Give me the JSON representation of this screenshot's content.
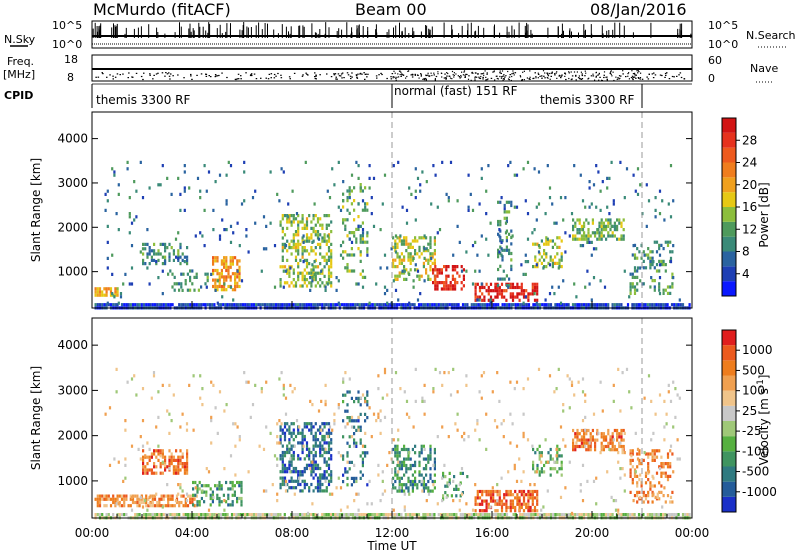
{
  "header": {
    "station": "McMurdo (fitACF)",
    "beam": "Beam 00",
    "date": "08/Jan/2016"
  },
  "top_strip": {
    "left_labels": [
      "N.Sky",
      "Freq.",
      "[MHz]",
      "CPID"
    ],
    "right_labels": [
      "N.Search",
      "Nave"
    ],
    "sky_ticks": [
      "10^5",
      "10^0"
    ],
    "search_ticks": [
      "10^5",
      "10^0"
    ],
    "freq_ticks": [
      "18",
      "8"
    ],
    "nave_ticks": [
      "60",
      "0"
    ],
    "cpid_segments": [
      {
        "label": "themis 3300 RF",
        "start_hr": 0,
        "end_hr": 12
      },
      {
        "label": "normal (fast) 151 RF",
        "start_hr": 12,
        "end_hr": 24
      },
      {
        "label": "themis 3300 RF",
        "start_hr": 18.5,
        "end_hr": 21.6
      }
    ]
  },
  "chart_data": [
    {
      "type": "heatmap",
      "name": "power",
      "ylabel": "Slant Range [km]",
      "xlabel": "Time UT",
      "xlim_hr": [
        0,
        24
      ],
      "ylim_km": [
        180,
        4600
      ],
      "yticks": [
        "1000",
        "2000",
        "3000",
        "4000"
      ],
      "colorbar": {
        "label": "Power [dB]",
        "ticks": [
          "4",
          "8",
          "12",
          "16",
          "20",
          "24",
          "28"
        ],
        "colors": [
          "#0a18ff",
          "#1e3fb4",
          "#2a63a0",
          "#3a8a78",
          "#4e9a5c",
          "#8cbe3c",
          "#e6c814",
          "#f0a01e",
          "#f07d1e",
          "#ee5a1e",
          "#e6321e",
          "#d21414"
        ]
      },
      "blobs": [
        {
          "t0": 0.1,
          "t1": 23.9,
          "r0": 190,
          "r1": 290,
          "v": 0.12,
          "d": 0.9
        },
        {
          "t0": 0.1,
          "t1": 1.0,
          "r0": 450,
          "r1": 650,
          "v": 0.6,
          "d": 0.8
        },
        {
          "t0": 2.0,
          "t1": 3.8,
          "r0": 1200,
          "r1": 1650,
          "v": 0.3,
          "d": 0.45
        },
        {
          "t0": 3.0,
          "t1": 4.6,
          "r0": 550,
          "r1": 1050,
          "v": 0.35,
          "d": 0.35
        },
        {
          "t0": 4.8,
          "t1": 5.9,
          "r0": 600,
          "r1": 1350,
          "v": 0.65,
          "d": 0.55
        },
        {
          "t0": 7.5,
          "t1": 9.6,
          "r0": 700,
          "r1": 2300,
          "v": 0.45,
          "d": 0.45
        },
        {
          "t0": 10.0,
          "t1": 11.0,
          "r0": 900,
          "r1": 3000,
          "v": 0.4,
          "d": 0.25
        },
        {
          "t0": 12.0,
          "t1": 13.7,
          "r0": 850,
          "r1": 1800,
          "v": 0.5,
          "d": 0.45
        },
        {
          "t0": 13.6,
          "t1": 14.9,
          "r0": 600,
          "r1": 1150,
          "v": 0.9,
          "d": 0.55
        },
        {
          "t0": 15.3,
          "t1": 17.8,
          "r0": 350,
          "r1": 750,
          "v": 0.95,
          "d": 0.6
        },
        {
          "t0": 16.2,
          "t1": 16.8,
          "r0": 700,
          "r1": 2600,
          "v": 0.3,
          "d": 0.3
        },
        {
          "t0": 17.6,
          "t1": 18.8,
          "r0": 1100,
          "r1": 1800,
          "v": 0.45,
          "d": 0.4
        },
        {
          "t0": 19.2,
          "t1": 21.3,
          "r0": 1700,
          "r1": 2200,
          "v": 0.4,
          "d": 0.5
        },
        {
          "t0": 21.5,
          "t1": 23.2,
          "r0": 500,
          "r1": 1700,
          "v": 0.35,
          "d": 0.3
        },
        {
          "t0": 0.5,
          "t1": 23.5,
          "r0": 300,
          "r1": 3500,
          "v": 0.25,
          "d": 0.04
        }
      ]
    },
    {
      "type": "heatmap",
      "name": "velocity",
      "ylabel": "Slant Range [km]",
      "xlabel": "Time UT",
      "xlim_hr": [
        0,
        24
      ],
      "ylim_km": [
        180,
        4600
      ],
      "yticks": [
        "1000",
        "2000",
        "3000",
        "4000"
      ],
      "colorbar": {
        "label": "Velocity [m s^-1]",
        "ticks": [
          "1000",
          "500",
          "100",
          "25",
          "-25",
          "-100",
          "-500",
          "-1000"
        ],
        "colors": [
          "#1a30c8",
          "#245c9a",
          "#2f7a80",
          "#3f9460",
          "#56b040",
          "#9fc878",
          "#c8c8c8",
          "#f0c48a",
          "#f0a050",
          "#ee7d1e",
          "#ec5a1e",
          "#e01e1e"
        ]
      },
      "blobs": [
        {
          "t0": 0.1,
          "t1": 23.9,
          "r0": 190,
          "r1": 290,
          "v": 0.5,
          "d": 0.9
        },
        {
          "t0": 0.1,
          "t1": 4.2,
          "r0": 450,
          "r1": 700,
          "v": 0.75,
          "d": 0.7
        },
        {
          "t0": 2.0,
          "t1": 3.8,
          "r0": 1200,
          "r1": 1700,
          "v": 0.8,
          "d": 0.55
        },
        {
          "t0": 4.0,
          "t1": 6.0,
          "r0": 500,
          "r1": 1000,
          "v": 0.3,
          "d": 0.4
        },
        {
          "t0": 7.5,
          "t1": 9.6,
          "r0": 800,
          "r1": 2300,
          "v": 0.18,
          "d": 0.5
        },
        {
          "t0": 10.0,
          "t1": 11.0,
          "r0": 900,
          "r1": 3000,
          "v": 0.2,
          "d": 0.25
        },
        {
          "t0": 12.0,
          "t1": 13.7,
          "r0": 800,
          "r1": 1800,
          "v": 0.25,
          "d": 0.5
        },
        {
          "t0": 14.0,
          "t1": 15.0,
          "r0": 600,
          "r1": 1200,
          "v": 0.35,
          "d": 0.35
        },
        {
          "t0": 15.3,
          "t1": 17.8,
          "r0": 350,
          "r1": 800,
          "v": 0.85,
          "d": 0.65
        },
        {
          "t0": 17.6,
          "t1": 18.8,
          "r0": 1100,
          "r1": 1800,
          "v": 0.35,
          "d": 0.35
        },
        {
          "t0": 19.2,
          "t1": 21.3,
          "r0": 1700,
          "r1": 2150,
          "v": 0.82,
          "d": 0.55
        },
        {
          "t0": 21.5,
          "t1": 23.2,
          "r0": 500,
          "r1": 1700,
          "v": 0.78,
          "d": 0.35
        },
        {
          "t0": 0.5,
          "t1": 23.5,
          "r0": 300,
          "r1": 3500,
          "v": 0.6,
          "d": 0.04
        }
      ]
    }
  ],
  "xaxis": {
    "ticks": [
      "00:00",
      "04:00",
      "08:00",
      "12:00",
      "16:00",
      "20:00",
      "00:00"
    ],
    "label": "Time UT"
  }
}
